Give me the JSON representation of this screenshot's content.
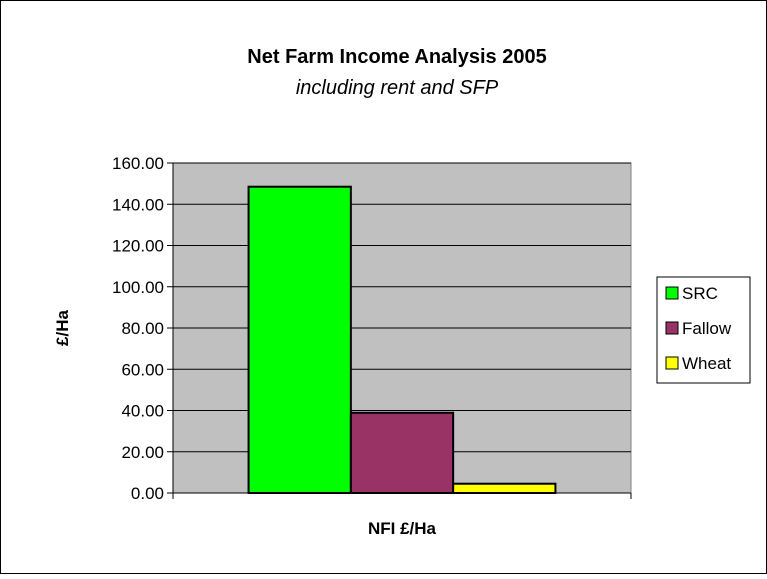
{
  "chart_data": {
    "type": "bar",
    "title": "Net Farm Income Analysis 2005",
    "subtitle": "including rent and SFP",
    "xlabel": "NFI £/Ha",
    "ylabel": "£/Ha",
    "ylim": [
      0,
      160
    ],
    "yticks": [
      "0.00",
      "20.00",
      "40.00",
      "60.00",
      "80.00",
      "100.00",
      "120.00",
      "140.00",
      "160.00"
    ],
    "categories": [
      "NFI £/Ha"
    ],
    "series": [
      {
        "name": "SRC",
        "values": [
          148.5
        ],
        "color": "#00ff00"
      },
      {
        "name": "Fallow",
        "values": [
          38.9
        ],
        "color": "#993366"
      },
      {
        "name": "Wheat",
        "values": [
          4.5
        ],
        "color": "#ffff00"
      }
    ],
    "plot_background": "#c0c0c0",
    "grid": true,
    "legend_position": "right"
  }
}
